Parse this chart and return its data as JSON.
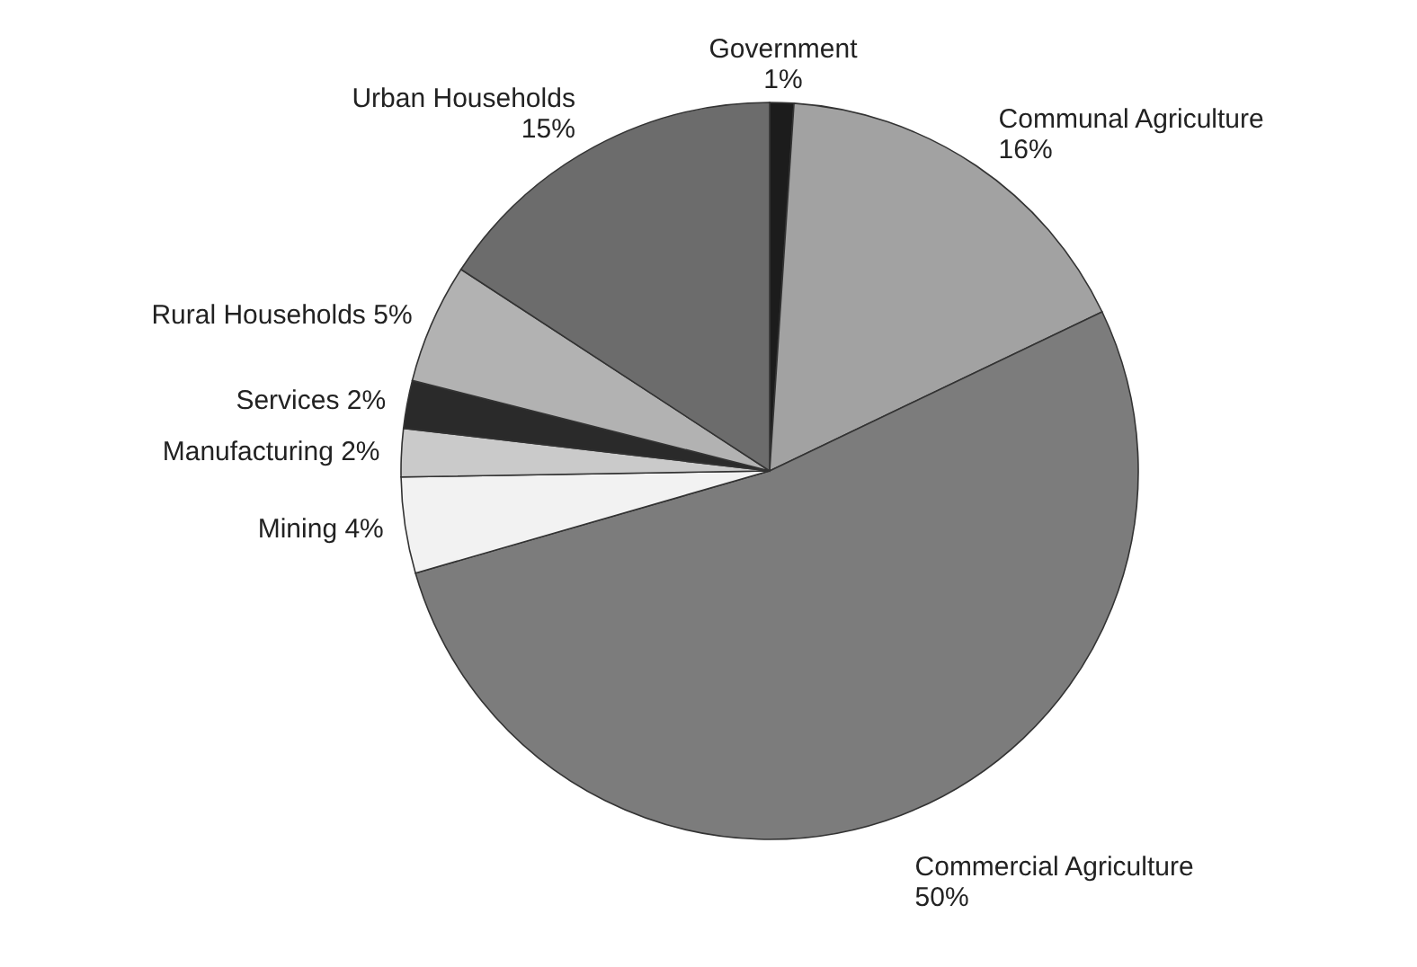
{
  "chart_data": {
    "type": "pie",
    "categories": [
      "Government",
      "Communal Agriculture",
      "Commercial Agriculture",
      "Mining",
      "Manufacturing",
      "Services",
      "Rural Households",
      "Urban Households"
    ],
    "values": [
      1,
      16,
      50,
      4,
      2,
      2,
      5,
      15
    ],
    "value_labels": [
      "1%",
      "16%",
      "50%",
      "4%",
      "2%",
      "2%",
      "5%",
      "15%"
    ],
    "colors": [
      "#1c1c1c",
      "#a2a2a2",
      "#7c7c7c",
      "#f2f2f2",
      "#cacaca",
      "#2a2a2a",
      "#b2b2b2",
      "#6c6c6c"
    ]
  }
}
